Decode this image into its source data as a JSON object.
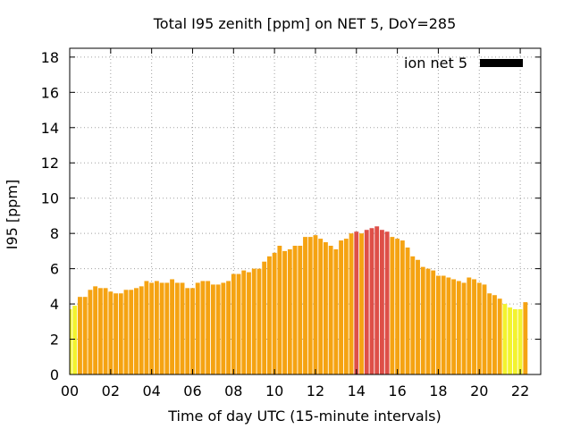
{
  "chart_data": {
    "type": "bar",
    "title": "Total I95 zenith [ppm] on NET 5, DoY=285",
    "xlabel": "Time of day UTC (15-minute intervals)",
    "ylabel": "I95 [ppm]",
    "xlim": [
      0,
      23
    ],
    "ylim": [
      0,
      18.5
    ],
    "interval_hours": 0.25,
    "x_ticks": [
      0,
      2,
      4,
      6,
      8,
      10,
      12,
      14,
      16,
      18,
      20,
      22
    ],
    "x_tick_labels": [
      "00",
      "02",
      "04",
      "06",
      "08",
      "10",
      "12",
      "14",
      "16",
      "18",
      "20",
      "22"
    ],
    "y_ticks": [
      0,
      2,
      4,
      6,
      8,
      10,
      12,
      14,
      16,
      18
    ],
    "y_tick_labels": [
      "0",
      "2",
      "4",
      "6",
      "8",
      "10",
      "12",
      "14",
      "16",
      "18"
    ],
    "grid": true,
    "legend": {
      "label": "ion net 5",
      "color": "#000000",
      "placement": "top-right"
    },
    "series": [
      {
        "name": "ion net 5",
        "values": [
          3.7,
          3.9,
          4.4,
          4.4,
          4.8,
          5.0,
          4.9,
          4.9,
          4.7,
          4.6,
          4.6,
          4.8,
          4.8,
          4.9,
          5.0,
          5.3,
          5.2,
          5.3,
          5.2,
          5.2,
          5.4,
          5.2,
          5.2,
          4.9,
          4.9,
          5.2,
          5.3,
          5.3,
          5.1,
          5.1,
          5.2,
          5.3,
          5.7,
          5.7,
          5.9,
          5.8,
          6.0,
          6.0,
          6.4,
          6.7,
          6.9,
          7.3,
          7.0,
          7.1,
          7.3,
          7.3,
          7.8,
          7.8,
          7.9,
          7.7,
          7.5,
          7.3,
          7.1,
          7.6,
          7.7,
          8.0,
          8.1,
          8.0,
          8.2,
          8.3,
          8.4,
          8.2,
          8.1,
          7.8,
          7.7,
          7.6,
          7.2,
          6.7,
          6.5,
          6.1,
          6.0,
          5.9,
          5.6,
          5.6,
          5.5,
          5.4,
          5.3,
          5.2,
          5.5,
          5.4,
          5.2,
          5.1,
          4.6,
          4.5,
          4.3,
          4.0,
          3.8,
          3.7,
          3.7,
          4.1
        ]
      }
    ],
    "color_thresholds": [
      {
        "max": 4.05,
        "color": "#f3f32e"
      },
      {
        "max": 8.05,
        "color": "#f5a312"
      },
      {
        "max": 99,
        "color": "#de4f48"
      }
    ]
  }
}
